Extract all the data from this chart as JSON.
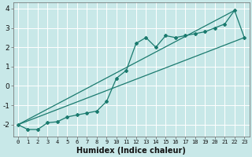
{
  "title": "",
  "xlabel": "Humidex (Indice chaleur)",
  "background_color": "#c8e8e8",
  "grid_color": "#ffffff",
  "line_color": "#1a7a6e",
  "x_data": [
    0,
    1,
    2,
    3,
    4,
    5,
    6,
    7,
    8,
    9,
    10,
    11,
    12,
    13,
    14,
    15,
    16,
    17,
    18,
    19,
    20,
    21,
    22,
    23
  ],
  "y_main": [
    -2.0,
    -2.25,
    -2.25,
    -1.9,
    -1.85,
    -1.6,
    -1.5,
    -1.4,
    -1.3,
    -0.8,
    0.4,
    0.8,
    2.2,
    2.5,
    2.0,
    2.6,
    2.5,
    2.6,
    2.7,
    2.8,
    3.0,
    3.2,
    3.9,
    2.5
  ],
  "straight_line1_x": [
    0,
    22
  ],
  "straight_line1_y": [
    -2.0,
    3.9
  ],
  "straight_line2_x": [
    0,
    23
  ],
  "straight_line2_y": [
    -2.0,
    2.5
  ],
  "ylim": [
    -2.6,
    4.3
  ],
  "xlim": [
    -0.5,
    23.5
  ],
  "yticks": [
    -2,
    -1,
    0,
    1,
    2,
    3,
    4
  ],
  "xticks": [
    0,
    1,
    2,
    3,
    4,
    5,
    6,
    7,
    8,
    9,
    10,
    11,
    12,
    13,
    14,
    15,
    16,
    17,
    18,
    19,
    20,
    21,
    22,
    23
  ]
}
